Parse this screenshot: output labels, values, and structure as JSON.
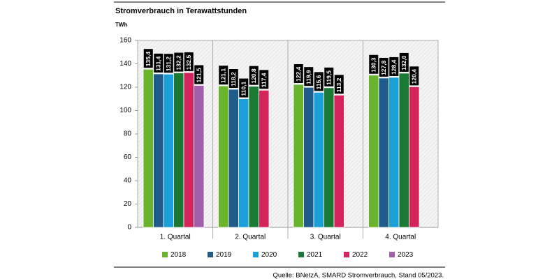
{
  "chart_data": {
    "type": "bar",
    "title": "Stromverbrauch in Terawattstunden",
    "y_unit": "TWh",
    "source": "Quelle: BNetzA, SMARD Stromverbrauch, Stand 05/2023.",
    "categories": [
      "1. Quartal",
      "2. Quartal",
      "3. Quartal",
      "4. Quartal"
    ],
    "series": [
      {
        "name": "2018",
        "color": "#6ab42d",
        "values": [
          135.4,
          121.1,
          122.4,
          130.3
        ],
        "value_labels": [
          "135,4",
          "121,1",
          "122,4",
          "130,3"
        ]
      },
      {
        "name": "2019",
        "color": "#1f5c8b",
        "values": [
          131.4,
          118.2,
          119.9,
          127.8
        ],
        "value_labels": [
          "131,4",
          "118,2",
          "119,9",
          "127,8"
        ]
      },
      {
        "name": "2020",
        "color": "#1a9fd9",
        "values": [
          131.2,
          110.1,
          115.6,
          128.4
        ],
        "value_labels": [
          "131,2",
          "110,1",
          "115,6",
          "128,4"
        ]
      },
      {
        "name": "2021",
        "color": "#1a7a33",
        "values": [
          132.2,
          120.8,
          119.5,
          132.0
        ],
        "value_labels": [
          "132,2",
          "120,8",
          "119,5",
          "132,0"
        ]
      },
      {
        "name": "2022",
        "color": "#d4245c",
        "values": [
          132.5,
          117.4,
          113.2,
          120.4
        ],
        "value_labels": [
          "132,5",
          "117,4",
          "113,2",
          "120,4"
        ]
      },
      {
        "name": "2023",
        "color": "#a05fa8",
        "values": [
          121.5,
          null,
          null,
          null
        ],
        "value_labels": [
          "121,5",
          null,
          null,
          null
        ]
      }
    ],
    "ylim": [
      0,
      160
    ],
    "yticks": [
      0,
      20,
      40,
      60,
      80,
      100,
      120,
      140,
      160
    ],
    "grid": false,
    "legend": "bottom"
  }
}
